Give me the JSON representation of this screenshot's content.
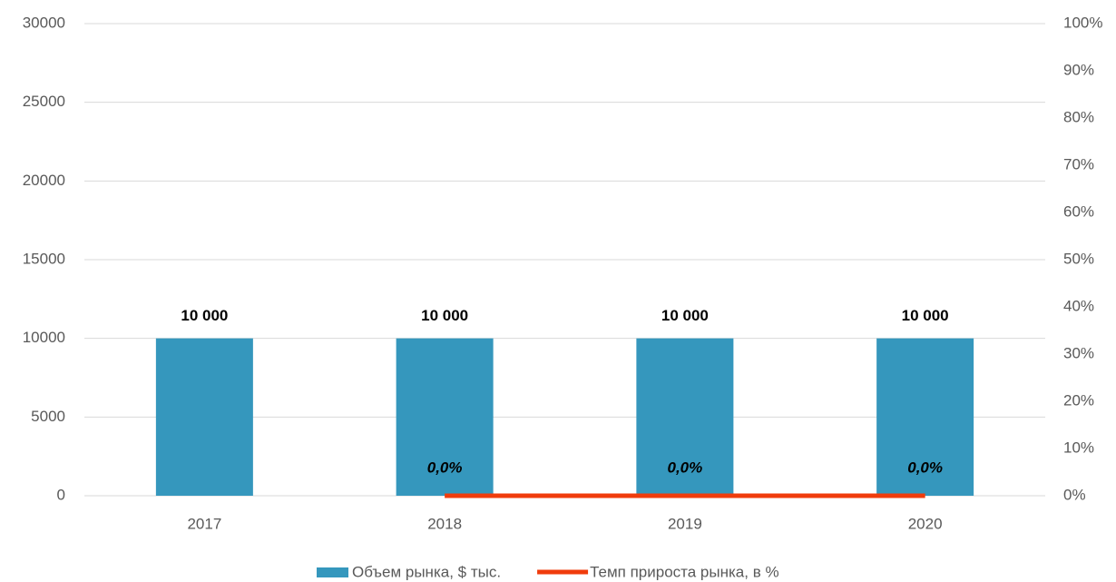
{
  "chart_data": {
    "type": "bar",
    "categories": [
      "2017",
      "2018",
      "2019",
      "2020"
    ],
    "series": [
      {
        "name": "Объем рынка, $ тыс.",
        "type": "bar",
        "color": "#3597bd",
        "values": [
          10000,
          10000,
          10000,
          10000
        ],
        "value_labels": [
          "10 000",
          "10 000",
          "10 000",
          "10 000"
        ]
      },
      {
        "name": "Темп прироста рынка, в %",
        "type": "line",
        "axis": "y2",
        "color": "#f03c0c",
        "values": [
          null,
          0,
          0,
          0
        ],
        "value_labels": [
          null,
          "0,0%",
          "0,0%",
          "0,0%"
        ]
      }
    ],
    "ylim": [
      0,
      30000
    ],
    "yticks": [
      0,
      5000,
      10000,
      15000,
      20000,
      25000,
      30000
    ],
    "y2lim": [
      0,
      100
    ],
    "y2ticks": [
      {
        "value": 0,
        "label": "0%"
      },
      {
        "value": 10,
        "label": "10%"
      },
      {
        "value": 20,
        "label": "20%"
      },
      {
        "value": 30,
        "label": "30%"
      },
      {
        "value": 40,
        "label": "40%"
      },
      {
        "value": 50,
        "label": "50%"
      },
      {
        "value": 60,
        "label": "60%"
      },
      {
        "value": 70,
        "label": "70%"
      },
      {
        "value": 80,
        "label": "80%"
      },
      {
        "value": 90,
        "label": "90%"
      },
      {
        "value": 100,
        "label": "100%"
      }
    ],
    "grid": true,
    "legend": "bottom"
  }
}
